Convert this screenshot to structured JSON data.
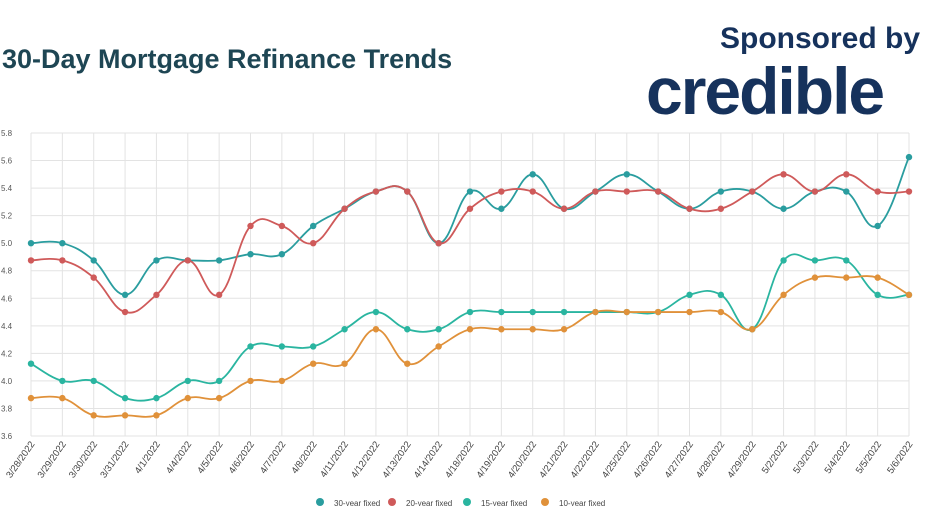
{
  "header": {
    "title": "30-Day Mortgage Refinance Trends",
    "sponsor_label": "Sponsored by",
    "sponsor_logo_text": "credible"
  },
  "colors": {
    "30-year fixed": "#2a9d9f",
    "20-year fixed": "#cf5a5a",
    "15-year fixed": "#2ab5a0",
    "10-year fixed": "#e0913a",
    "title": "#1e4654",
    "brand": "#16325c"
  },
  "chart_data": {
    "type": "line",
    "title": "30-Day Mortgage Refinance Trends",
    "xlabel": "",
    "ylabel": "",
    "ylim": [
      3.6,
      5.8
    ],
    "yticks": [
      "3.6",
      "3.8",
      "4.0",
      "4.2",
      "4.4",
      "4.6",
      "4.8",
      "5.0",
      "5.2",
      "5.4",
      "5.6",
      "5.8"
    ],
    "grid": true,
    "legend": "bottom",
    "categories": [
      "3/28/2022",
      "3/29/2022",
      "3/30/2022",
      "3/31/2022",
      "4/1/2022",
      "4/4/2022",
      "4/5/2022",
      "4/6/2022",
      "4/7/2022",
      "4/8/2022",
      "4/11/2022",
      "4/12/2022",
      "4/13/2022",
      "4/14/2022",
      "4/18/2022",
      "4/19/2022",
      "4/20/2022",
      "4/21/2022",
      "4/22/2022",
      "4/25/2022",
      "4/26/2022",
      "4/27/2022",
      "4/28/2022",
      "4/29/2022",
      "5/2/2022",
      "5/3/2022",
      "5/4/2022",
      "5/5/2022",
      "5/6/2022"
    ],
    "series": [
      {
        "name": "30-year fixed",
        "values": [
          5.0,
          5.0,
          4.875,
          4.625,
          4.875,
          4.875,
          4.875,
          4.92,
          4.92,
          5.125,
          5.25,
          5.375,
          5.375,
          5.0,
          5.375,
          5.25,
          5.5,
          5.25,
          5.375,
          5.5,
          5.375,
          5.25,
          5.375,
          5.375,
          5.25,
          5.375,
          5.375,
          5.125,
          5.625
        ]
      },
      {
        "name": "20-year fixed",
        "values": [
          4.875,
          4.875,
          4.75,
          4.5,
          4.625,
          4.875,
          4.625,
          5.125,
          5.125,
          5.0,
          5.25,
          5.375,
          5.375,
          5.0,
          5.25,
          5.375,
          5.375,
          5.25,
          5.375,
          5.375,
          5.375,
          5.25,
          5.25,
          5.375,
          5.5,
          5.375,
          5.5,
          5.375,
          5.375
        ]
      },
      {
        "name": "15-year fixed",
        "values": [
          4.125,
          4.0,
          4.0,
          3.875,
          3.875,
          4.0,
          4.0,
          4.25,
          4.25,
          4.25,
          4.375,
          4.5,
          4.375,
          4.375,
          4.5,
          4.5,
          4.5,
          4.5,
          4.5,
          4.5,
          4.5,
          4.625,
          4.625,
          4.375,
          4.875,
          4.875,
          4.875,
          4.625,
          4.625
        ]
      },
      {
        "name": "10-year fixed",
        "values": [
          3.875,
          3.875,
          3.75,
          3.75,
          3.75,
          3.875,
          3.875,
          4.0,
          4.0,
          4.125,
          4.125,
          4.375,
          4.125,
          4.25,
          4.375,
          4.375,
          4.375,
          4.375,
          4.5,
          4.5,
          4.5,
          4.5,
          4.5,
          4.375,
          4.625,
          4.75,
          4.75,
          4.75,
          4.625
        ]
      }
    ]
  }
}
